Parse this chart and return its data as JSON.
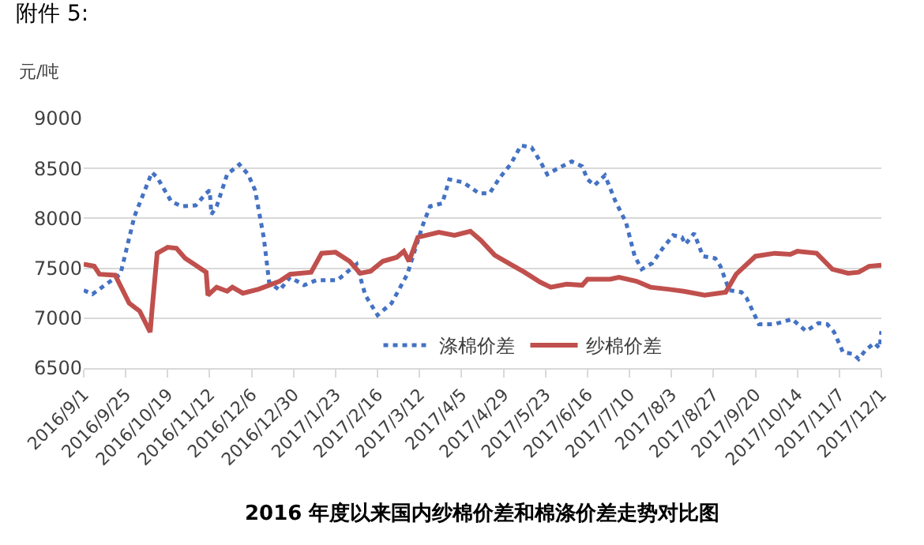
{
  "chart_data": {
    "type": "line",
    "title": "2016 年度以来国内纱棉价差和棉涤价差走势对比图",
    "ylabel": "元/吨",
    "annotations": [
      "附件 5:"
    ],
    "xlim": [
      "2016-09-01",
      "2017-12-01"
    ],
    "xticks": [
      {
        "value": "2016-09-01",
        "label": "2016/9/1"
      },
      {
        "value": "2016-09-25",
        "label": "2016/9/25"
      },
      {
        "value": "2016-10-19",
        "label": "2016/10/19"
      },
      {
        "value": "2016-11-12",
        "label": "2016/11/12"
      },
      {
        "value": "2016-12-06",
        "label": "2016/12/6"
      },
      {
        "value": "2016-12-30",
        "label": "2016/12/30"
      },
      {
        "value": "2017-01-23",
        "label": "2017/1/23"
      },
      {
        "value": "2017-02-16",
        "label": "2017/2/16"
      },
      {
        "value": "2017-03-12",
        "label": "2017/3/12"
      },
      {
        "value": "2017-04-05",
        "label": "2017/4/5"
      },
      {
        "value": "2017-04-29",
        "label": "2017/4/29"
      },
      {
        "value": "2017-05-23",
        "label": "2017/5/23"
      },
      {
        "value": "2017-06-16",
        "label": "2017/6/16"
      },
      {
        "value": "2017-07-10",
        "label": "2017/7/10"
      },
      {
        "value": "2017-08-03",
        "label": "2017/8/3"
      },
      {
        "value": "2017-08-27",
        "label": "2017/8/27"
      },
      {
        "value": "2017-09-20",
        "label": "2017/9/20"
      },
      {
        "value": "2017-10-14",
        "label": "2017/10/14"
      },
      {
        "value": "2017-11-07",
        "label": "2017/11/7"
      },
      {
        "value": "2017-12-01",
        "label": "2017/12/1"
      }
    ],
    "ylim": [
      6500,
      9000
    ],
    "yticks": [
      6500,
      7000,
      7500,
      8000,
      8500,
      9000
    ],
    "grid": "y",
    "legend": "bottom",
    "series": [
      {
        "name": "涤棉价差",
        "color": "#4472c4",
        "line_style": "dotted",
        "x": [
          "2016-09-01",
          "2016-09-06",
          "2016-09-13",
          "2016-09-22",
          "2016-09-30",
          "2016-10-10",
          "2016-10-13",
          "2016-10-21",
          "2016-10-27",
          "2016-11-04",
          "2016-11-10",
          "2016-11-12",
          "2016-11-13",
          "2016-11-16",
          "2016-11-22",
          "2016-11-29",
          "2016-12-04",
          "2016-12-08",
          "2016-12-13",
          "2016-12-16",
          "2016-12-22",
          "2016-12-28",
          "2017-01-05",
          "2017-01-12",
          "2017-01-24",
          "2017-02-04",
          "2017-02-09",
          "2017-02-16",
          "2017-02-24",
          "2017-03-05",
          "2017-03-14",
          "2017-03-18",
          "2017-03-25",
          "2017-03-29",
          "2017-04-06",
          "2017-04-15",
          "2017-04-21",
          "2017-04-27",
          "2017-05-03",
          "2017-05-09",
          "2017-05-15",
          "2017-05-20",
          "2017-05-24",
          "2017-05-29",
          "2017-06-07",
          "2017-06-13",
          "2017-06-16",
          "2017-06-20",
          "2017-06-26",
          "2017-07-02",
          "2017-07-08",
          "2017-07-13",
          "2017-07-17",
          "2017-07-23",
          "2017-07-29",
          "2017-08-04",
          "2017-08-09",
          "2017-08-11",
          "2017-08-16",
          "2017-08-21",
          "2017-08-28",
          "2017-08-31",
          "2017-09-05",
          "2017-09-12",
          "2017-09-15",
          "2017-09-22",
          "2017-10-01",
          "2017-10-11",
          "2017-10-19",
          "2017-10-26",
          "2017-10-31",
          "2017-11-04",
          "2017-11-09",
          "2017-11-15",
          "2017-11-18",
          "2017-11-22",
          "2017-11-27",
          "2017-11-30",
          "2017-12-01"
        ],
        "values": [
          7280,
          7240,
          7330,
          7440,
          8020,
          8460,
          8410,
          8170,
          8120,
          8130,
          8250,
          8280,
          8040,
          8120,
          8440,
          8540,
          8440,
          8280,
          7800,
          7360,
          7280,
          7410,
          7330,
          7380,
          7380,
          7540,
          7230,
          7030,
          7150,
          7440,
          7940,
          8120,
          8150,
          8390,
          8360,
          8250,
          8250,
          8410,
          8540,
          8730,
          8710,
          8570,
          8440,
          8490,
          8570,
          8520,
          8390,
          8330,
          8430,
          8170,
          7960,
          7620,
          7490,
          7550,
          7700,
          7830,
          7810,
          7740,
          7850,
          7620,
          7600,
          7520,
          7280,
          7260,
          7200,
          6940,
          6940,
          6990,
          6870,
          6950,
          6940,
          6860,
          6660,
          6640,
          6590,
          6680,
          6750,
          6700,
          6870
        ]
      },
      {
        "name": "纱棉价差",
        "color": "#c0504d",
        "line_style": "solid",
        "x": [
          "2016-09-01",
          "2016-09-07",
          "2016-09-10",
          "2016-09-19",
          "2016-09-27",
          "2016-10-03",
          "2016-10-09",
          "2016-10-10",
          "2016-10-13",
          "2016-10-19",
          "2016-10-24",
          "2016-10-29",
          "2016-11-04",
          "2016-11-10",
          "2016-11-11",
          "2016-11-16",
          "2016-11-22",
          "2016-11-25",
          "2016-12-01",
          "2016-12-10",
          "2016-12-16",
          "2016-12-22",
          "2016-12-28",
          "2017-01-09",
          "2017-01-15",
          "2017-01-23",
          "2017-01-31",
          "2017-02-06",
          "2017-02-12",
          "2017-02-19",
          "2017-02-27",
          "2017-03-03",
          "2017-03-06",
          "2017-03-11",
          "2017-03-23",
          "2017-04-01",
          "2017-04-10",
          "2017-04-16",
          "2017-04-24",
          "2017-05-03",
          "2017-05-11",
          "2017-05-20",
          "2017-05-26",
          "2017-06-04",
          "2017-06-13",
          "2017-06-16",
          "2017-06-29",
          "2017-07-04",
          "2017-07-14",
          "2017-07-22",
          "2017-08-01",
          "2017-08-10",
          "2017-08-22",
          "2017-09-03",
          "2017-09-09",
          "2017-09-20",
          "2017-10-01",
          "2017-10-10",
          "2017-10-14",
          "2017-10-25",
          "2017-11-03",
          "2017-11-12",
          "2017-11-18",
          "2017-11-24",
          "2017-12-01"
        ],
        "values": [
          7540,
          7520,
          7440,
          7430,
          7150,
          7070,
          6860,
          7070,
          7650,
          7710,
          7700,
          7600,
          7530,
          7460,
          7230,
          7310,
          7270,
          7310,
          7250,
          7290,
          7330,
          7370,
          7440,
          7460,
          7650,
          7660,
          7570,
          7450,
          7470,
          7570,
          7610,
          7670,
          7570,
          7810,
          7860,
          7830,
          7870,
          7780,
          7630,
          7540,
          7460,
          7360,
          7310,
          7340,
          7330,
          7390,
          7390,
          7410,
          7370,
          7310,
          7290,
          7270,
          7230,
          7260,
          7440,
          7620,
          7650,
          7640,
          7670,
          7650,
          7490,
          7450,
          7460,
          7520,
          7530
        ]
      }
    ]
  }
}
